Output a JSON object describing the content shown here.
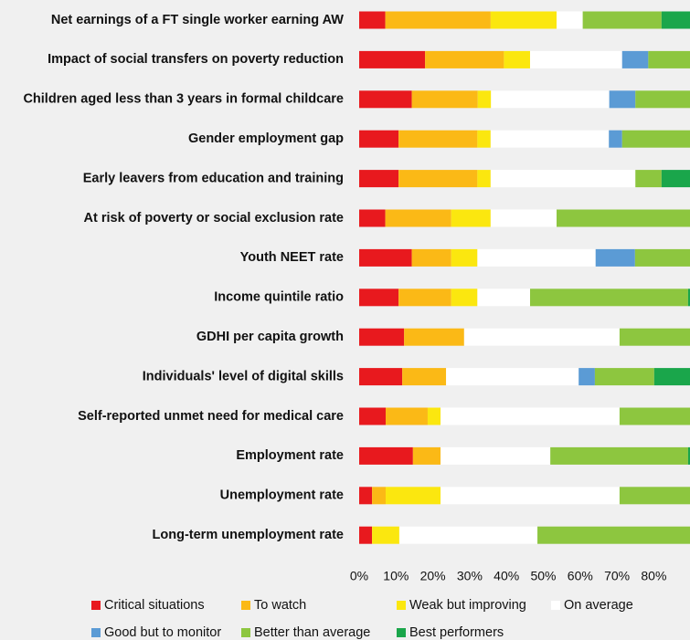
{
  "chart_data": {
    "type": "stacked_barh",
    "categories": [
      "Net earnings of a FT single worker earning AW",
      "Impact of social transfers on poverty reduction",
      "Children aged less than 3 years in formal childcare",
      "Gender employment gap",
      "Early leavers from education and training",
      "At risk of poverty or social exclusion rate",
      "Youth NEET rate",
      "Income quintile ratio",
      "GDHI per capita growth",
      "Individuals' level of digital skills",
      "Self-reported unmet need for medical care",
      "Employment rate",
      "Unemployment rate",
      "Long-term unemployment rate"
    ],
    "series": [
      {
        "name": "Critical situations",
        "color": "#e8191e",
        "values": [
          7.1,
          17.9,
          14.3,
          10.7,
          10.7,
          7.1,
          14.3,
          10.7,
          12.2,
          11.7,
          7.2,
          14.6,
          3.5,
          3.5
        ]
      },
      {
        "name": "To watch",
        "color": "#fbb916",
        "values": [
          28.6,
          21.4,
          17.9,
          21.4,
          21.4,
          17.9,
          10.7,
          14.3,
          16.3,
          11.9,
          11.4,
          7.5,
          3.7,
          0
        ]
      },
      {
        "name": "Weak but improving",
        "color": "#fbe70f",
        "values": [
          17.9,
          7.1,
          3.6,
          3.6,
          3.6,
          10.7,
          7.1,
          7.1,
          0,
          0,
          3.5,
          0,
          14.9,
          7.4
        ]
      },
      {
        "name": "On average",
        "color": "#ffffff",
        "values": [
          7.1,
          25,
          32.1,
          32.1,
          39.3,
          17.9,
          32.1,
          14.3,
          42.2,
          36,
          48.6,
          29.8,
          48.6,
          37.5
        ]
      },
      {
        "name": "Good but to monitor",
        "color": "#5b9bd5",
        "values": [
          0,
          7.1,
          7.1,
          3.6,
          0,
          0,
          10.7,
          0,
          0,
          4.4,
          0,
          0,
          0,
          0
        ]
      },
      {
        "name": "Better than average",
        "color": "#8dc63f",
        "values": [
          21.4,
          21.4,
          25,
          28.6,
          7.1,
          46.4,
          25,
          42.9,
          29.3,
          16.1,
          29.3,
          37.4,
          29.3,
          51.6
        ]
      },
      {
        "name": "Best performers",
        "color": "#1aa64b",
        "values": [
          17.9,
          0,
          0,
          0,
          17.9,
          0,
          0,
          10.7,
          0,
          19.9,
          0,
          10.7,
          0,
          0
        ]
      }
    ],
    "xlim": [
      0,
      100
    ],
    "xticks": [
      {
        "value": 0,
        "label": "0%"
      },
      {
        "value": 10,
        "label": "10%"
      },
      {
        "value": 20,
        "label": "20%"
      },
      {
        "value": 30,
        "label": "30%"
      },
      {
        "value": 40,
        "label": "40%"
      },
      {
        "value": 50,
        "label": "50%"
      },
      {
        "value": 60,
        "label": "60%"
      },
      {
        "value": 70,
        "label": "70%"
      },
      {
        "value": 80,
        "label": "80%"
      }
    ],
    "grid": false,
    "legend": "bottom"
  }
}
